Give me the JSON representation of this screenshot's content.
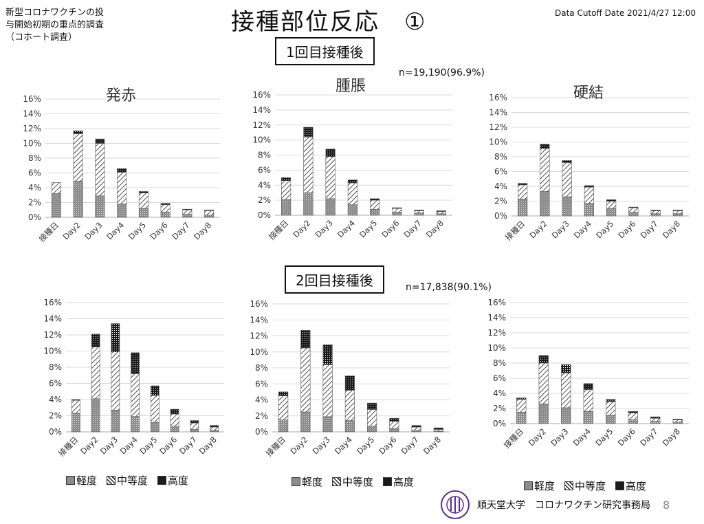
{
  "header": {
    "left_lines": [
      "新型コロナワクチンの投",
      "与開始初期の重点的調査",
      "（コホート調査）"
    ],
    "title": "接種部位反応",
    "title_number": "①",
    "cutoff": "Data Cutoff Date 2021/4/27 12:00"
  },
  "doses": [
    {
      "label": "1回目接種後",
      "n": "n=19,190(96.9%)"
    },
    {
      "label": "2回目接種後",
      "n": "n=17,838(90.1%)"
    }
  ],
  "legend": [
    "軽度",
    "中等度",
    "高度"
  ],
  "colors": {
    "mild": "#8c8c8c",
    "moderate": "#ffffff",
    "severe": "#1a1a1a"
  },
  "footer": {
    "org": "順天堂大学　コロナワクチン研究事務局",
    "page": "8"
  },
  "chart_data": [
    {
      "type": "bar",
      "stacked": true,
      "title": "発赤",
      "dose": "1回目接種後",
      "categories": [
        "接種日",
        "Day2",
        "Day3",
        "Day4",
        "Day5",
        "Day6",
        "Day7",
        "Day8"
      ],
      "ylim": [
        0,
        16
      ],
      "yticks": [
        "0%",
        "2%",
        "4%",
        "6%",
        "8%",
        "10%",
        "12%",
        "14%",
        "16%"
      ],
      "series": [
        {
          "name": "軽度",
          "values": [
            3.2,
            4.9,
            2.9,
            1.8,
            1.2,
            0.7,
            0.4,
            0.3
          ]
        },
        {
          "name": "中等度",
          "values": [
            1.5,
            6.4,
            7.1,
            4.3,
            2.1,
            1.0,
            0.6,
            0.6
          ]
        },
        {
          "name": "高度",
          "values": [
            0.0,
            0.4,
            0.6,
            0.5,
            0.2,
            0.2,
            0.1,
            0.1
          ]
        }
      ]
    },
    {
      "type": "bar",
      "stacked": true,
      "title": "腫脹",
      "dose": "1回目接種後",
      "categories": [
        "接種日",
        "Day2",
        "Day3",
        "Day4",
        "Day5",
        "Day6",
        "Day7",
        "Day8"
      ],
      "ylim": [
        0,
        16
      ],
      "yticks": [
        "0%",
        "2%",
        "4%",
        "6%",
        "8%",
        "10%",
        "12%",
        "14%",
        "16%"
      ],
      "series": [
        {
          "name": "軽度",
          "values": [
            2.1,
            3.0,
            2.2,
            1.4,
            0.8,
            0.4,
            0.3,
            0.2
          ]
        },
        {
          "name": "中等度",
          "values": [
            2.5,
            7.4,
            5.6,
            2.9,
            1.2,
            0.5,
            0.3,
            0.3
          ]
        },
        {
          "name": "高度",
          "values": [
            0.4,
            1.3,
            1.0,
            0.4,
            0.2,
            0.1,
            0.1,
            0.1
          ]
        }
      ]
    },
    {
      "type": "bar",
      "stacked": true,
      "title": "硬結",
      "dose": "1回目接種後",
      "categories": [
        "接種日",
        "Day2",
        "Day3",
        "Day4",
        "Day5",
        "Day6",
        "Day7",
        "Day8"
      ],
      "ylim": [
        0,
        16
      ],
      "yticks": [
        "0%",
        "2%",
        "4%",
        "6%",
        "8%",
        "10%",
        "12%",
        "14%",
        "16%"
      ],
      "series": [
        {
          "name": "軽度",
          "values": [
            2.3,
            3.3,
            2.6,
            1.7,
            1.0,
            0.5,
            0.3,
            0.3
          ]
        },
        {
          "name": "中等度",
          "values": [
            1.9,
            5.8,
            4.6,
            2.2,
            1.0,
            0.6,
            0.4,
            0.4
          ]
        },
        {
          "name": "高度",
          "values": [
            0.2,
            0.6,
            0.3,
            0.2,
            0.2,
            0.1,
            0.1,
            0.1
          ]
        }
      ]
    },
    {
      "type": "bar",
      "stacked": true,
      "title": "",
      "dose": "2回目接種後",
      "categories": [
        "接種日",
        "Day2",
        "Day3",
        "Day4",
        "Day5",
        "Day6",
        "Day7",
        "Day8"
      ],
      "ylim": [
        0,
        16
      ],
      "yticks": [
        "0%",
        "2%",
        "4%",
        "6%",
        "8%",
        "10%",
        "12%",
        "14%",
        "16%"
      ],
      "series": [
        {
          "name": "軽度",
          "values": [
            2.3,
            4.1,
            2.7,
            1.9,
            1.2,
            0.7,
            0.3,
            0.2
          ]
        },
        {
          "name": "中等度",
          "values": [
            1.6,
            6.4,
            7.2,
            5.3,
            3.3,
            1.5,
            0.8,
            0.4
          ]
        },
        {
          "name": "高度",
          "values": [
            0.1,
            1.6,
            3.5,
            2.6,
            1.2,
            0.6,
            0.3,
            0.2
          ]
        }
      ]
    },
    {
      "type": "bar",
      "stacked": true,
      "title": "",
      "dose": "2回目接種後",
      "categories": [
        "接種日",
        "Day2",
        "Day3",
        "Day4",
        "Day5",
        "Day6",
        "Day7",
        "Day8"
      ],
      "ylim": [
        0,
        16
      ],
      "yticks": [
        "0%",
        "2%",
        "4%",
        "6%",
        "8%",
        "10%",
        "12%",
        "14%",
        "16%"
      ],
      "series": [
        {
          "name": "軽度",
          "values": [
            1.5,
            2.5,
            1.9,
            1.4,
            0.7,
            0.4,
            0.2,
            0.1
          ]
        },
        {
          "name": "中等度",
          "values": [
            3.0,
            8.0,
            6.5,
            3.8,
            2.1,
            0.9,
            0.4,
            0.2
          ]
        },
        {
          "name": "高度",
          "values": [
            0.5,
            2.2,
            2.5,
            1.8,
            0.8,
            0.4,
            0.2,
            0.2
          ]
        }
      ]
    },
    {
      "type": "bar",
      "stacked": true,
      "title": "",
      "dose": "2回目接種後",
      "categories": [
        "接種日",
        "Day2",
        "Day3",
        "Day4",
        "Day5",
        "Day6",
        "Day7",
        "Day8"
      ],
      "ylim": [
        0,
        16
      ],
      "yticks": [
        "0%",
        "2%",
        "4%",
        "6%",
        "8%",
        "10%",
        "12%",
        "14%",
        "16%"
      ],
      "series": [
        {
          "name": "軽度",
          "values": [
            1.5,
            2.6,
            2.1,
            1.6,
            1.1,
            0.5,
            0.3,
            0.2
          ]
        },
        {
          "name": "中等度",
          "values": [
            1.7,
            5.4,
            4.6,
            2.9,
            1.8,
            0.9,
            0.4,
            0.3
          ]
        },
        {
          "name": "高度",
          "values": [
            0.2,
            1.0,
            1.1,
            0.8,
            0.3,
            0.2,
            0.2,
            0.1
          ]
        }
      ]
    }
  ]
}
